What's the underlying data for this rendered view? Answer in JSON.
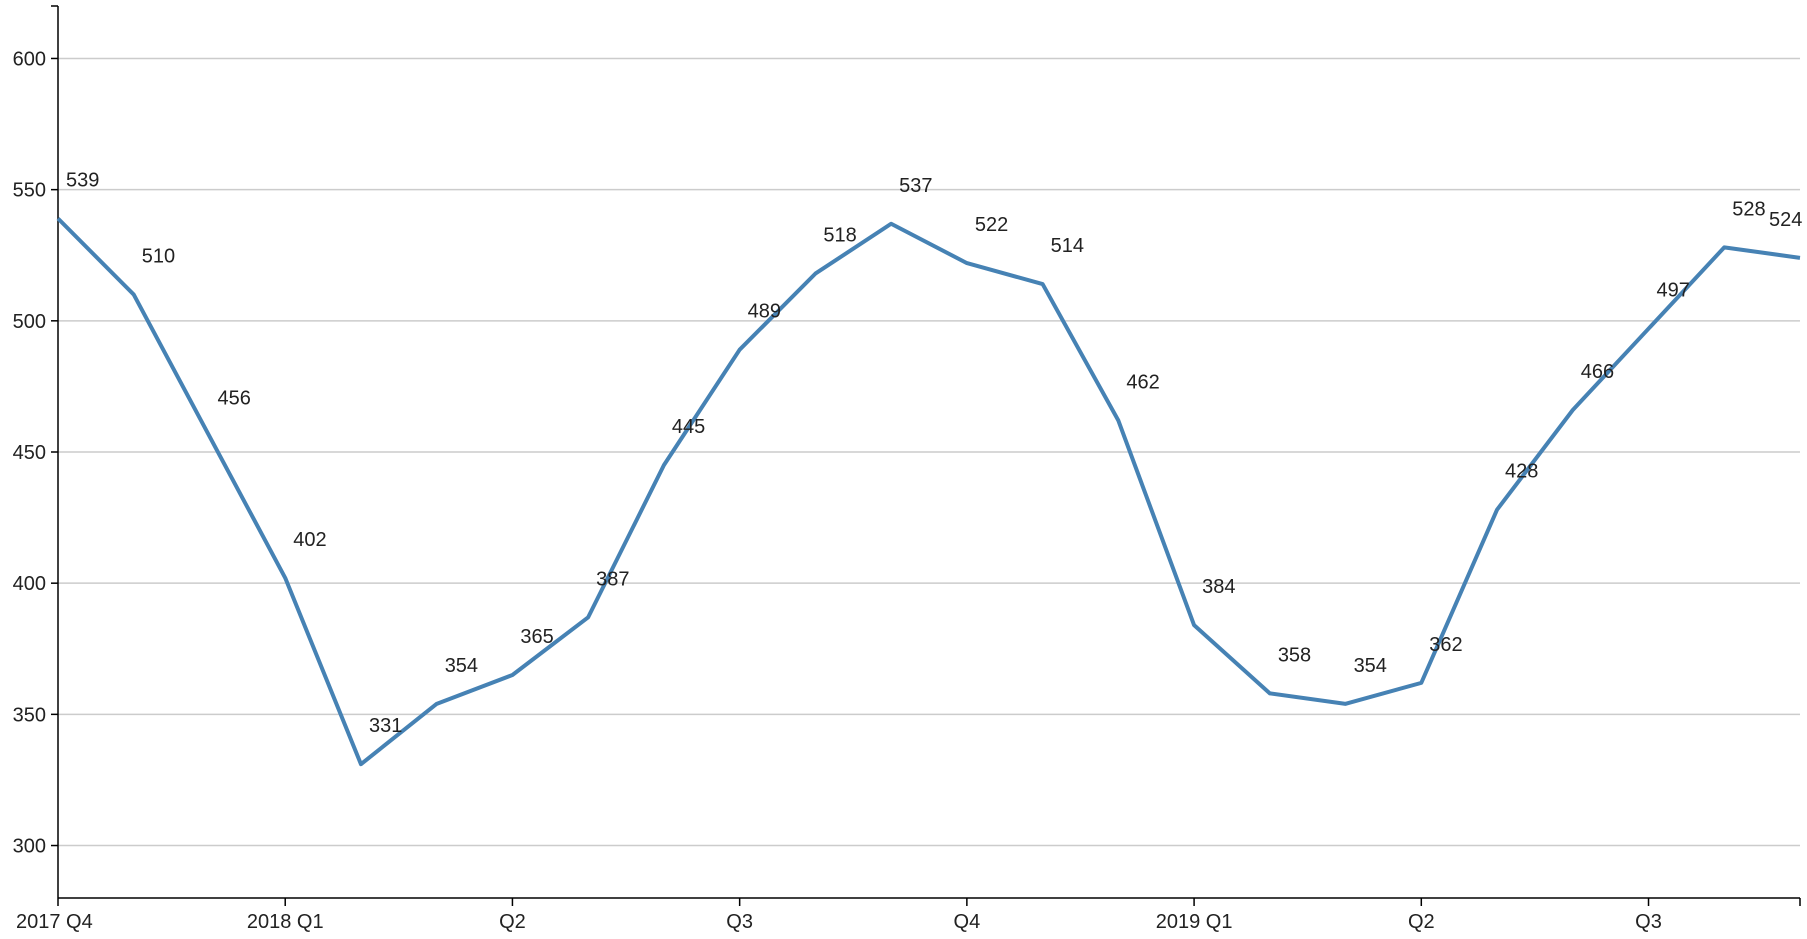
{
  "chart_data": {
    "type": "line",
    "title": "",
    "xlabel": "",
    "ylabel": "",
    "ylim": [
      280,
      620
    ],
    "yticks": [
      300,
      350,
      400,
      450,
      500,
      550,
      600
    ],
    "grid": true,
    "x_tick_labels": [
      "2017 Q4",
      "2018 Q1",
      "Q2",
      "Q3",
      "Q4",
      "2019 Q1",
      "Q2",
      "Q3"
    ],
    "values": [
      539,
      510,
      456,
      402,
      331,
      354,
      365,
      387,
      445,
      489,
      518,
      537,
      522,
      514,
      462,
      384,
      358,
      354,
      362,
      428,
      466,
      497,
      528,
      524
    ],
    "series": [
      {
        "values": [
          539,
          510,
          456,
          402,
          331,
          354,
          365,
          387,
          445,
          489,
          518,
          537,
          522,
          514,
          462,
          384,
          358,
          354,
          362,
          428,
          466,
          497,
          528,
          524
        ]
      }
    ],
    "line_color": "#4682b4"
  }
}
